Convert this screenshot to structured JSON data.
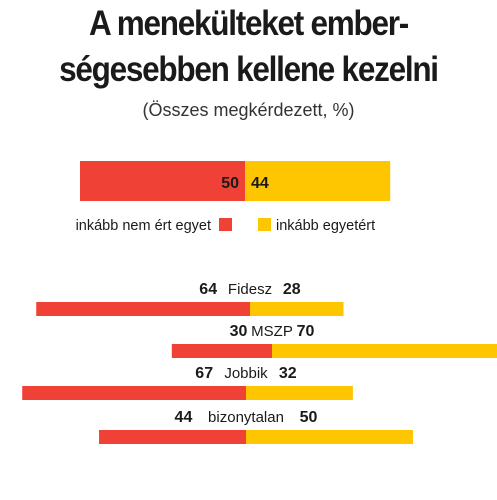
{
  "title_line1": "A menekülteket ember-",
  "title_line2": "ségesebben kellene kezelni",
  "subtitle": "(Összes megkérdezett, %)",
  "colors": {
    "disagree": "#ef4135",
    "agree": "#fec601"
  },
  "chart_data": {
    "type": "bar",
    "stacked": "diverging",
    "title": "A menekülteket emberségesebben kellene kezelni",
    "subtitle": "(Összes megkérdezett, %)",
    "legend": [
      "inkább nem ért egyet",
      "inkább egyetért"
    ],
    "overall": {
      "disagree": 50,
      "agree": 44
    },
    "categories": [
      "Fidesz",
      "MSZP",
      "Jobbik",
      "bizonytalan"
    ],
    "series": [
      {
        "name": "inkább nem ért egyet",
        "values": [
          64,
          30,
          67,
          44
        ]
      },
      {
        "name": "inkább egyetért",
        "values": [
          28,
          70,
          32,
          50
        ]
      }
    ]
  }
}
